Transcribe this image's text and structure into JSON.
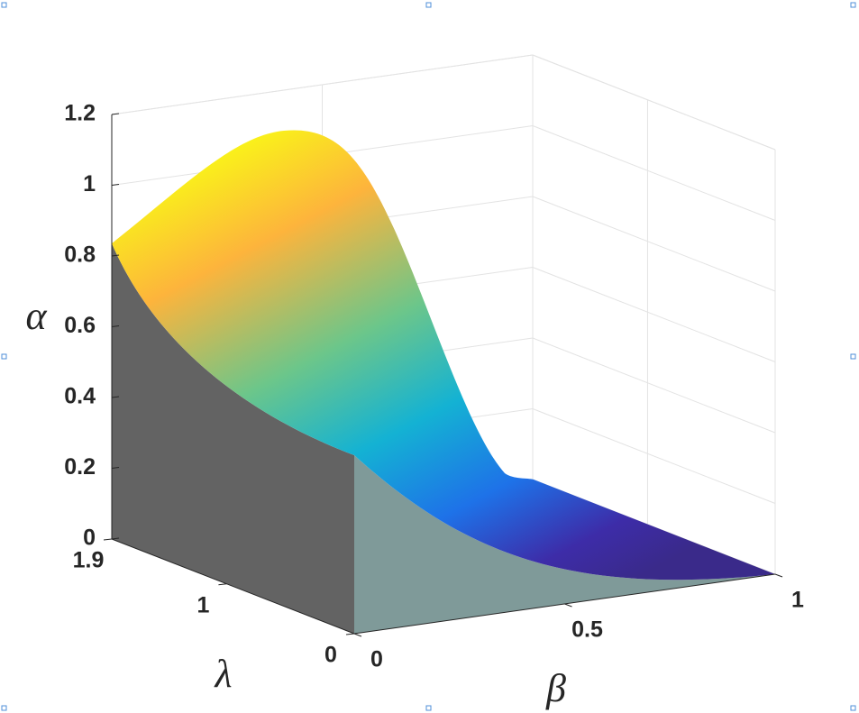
{
  "chart_data": {
    "type": "surface",
    "xlabel": "β",
    "ylabel": "λ",
    "zlabel": "α",
    "xlim": [
      0,
      1
    ],
    "xticks": [
      0,
      0.5,
      1
    ],
    "ylim": [
      0,
      1.9
    ],
    "yticks": [
      0,
      1,
      1.9
    ],
    "zlim": [
      0,
      1.2
    ],
    "zticks": [
      0,
      0.2,
      0.4,
      0.6,
      0.8,
      1,
      1.2
    ],
    "grid": true
  }
}
